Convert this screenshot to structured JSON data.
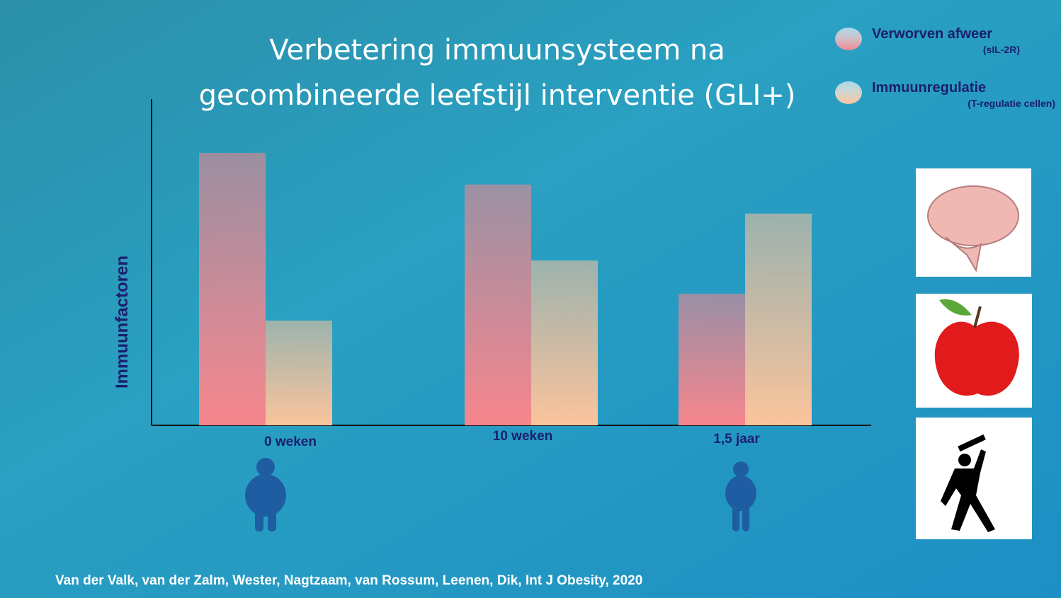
{
  "chart_data": {
    "type": "bar",
    "title": "Verbetering immuunsysteem na gecombineerde leefstijl interventie (GLI+)",
    "y_label": "Immuunfactoren",
    "categories": [
      "0 weken",
      "10 weken",
      "1,5 jaar"
    ],
    "series": [
      {
        "name": "Verworven afweer",
        "sublabel": "(sIL-2R)",
        "color": "#f7868d",
        "values": [
          83.5,
          73.8,
          40.3
        ]
      },
      {
        "name": "Immuunregulatie",
        "sublabel": "(T-regulatie cellen)",
        "color": "#fbc49c",
        "values": [
          32.1,
          50.5,
          64.9
        ]
      }
    ],
    "ylim": [
      0,
      100
    ],
    "legend": "top-right",
    "source": "Van der Valk, van der Zalm, Wester, Nagtzaam, van Rossum, Leenen, Dik,  Int J Obesity, 2020"
  }
}
